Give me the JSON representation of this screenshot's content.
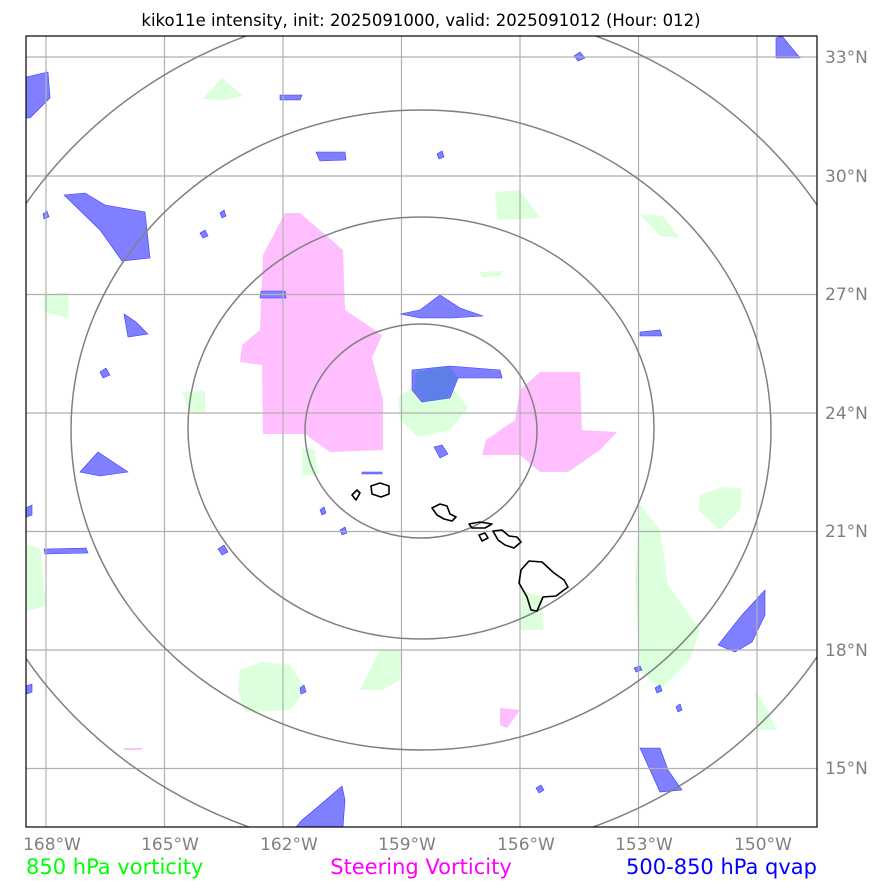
{
  "title": "kiko11e intensity, init: 2025091000, valid: 2025091012 (Hour: 012)",
  "lon_ticks": [
    "168°W",
    "165°W",
    "162°W",
    "159°W",
    "156°W",
    "153°W",
    "150°W"
  ],
  "lat_ticks": [
    "33°N",
    "30°N",
    "27°N",
    "24°N",
    "21°N",
    "18°N",
    "15°N"
  ],
  "map": {
    "lon_range": [
      -168.5,
      -148.5
    ],
    "lat_range": [
      13.5,
      33.5
    ],
    "storm_center": {
      "lon": -158.5,
      "lat": 23.6
    },
    "range_rings_count": 4,
    "grid": true
  },
  "legend": [
    {
      "label": "850 hPa vorticity",
      "color": "#00ff00"
    },
    {
      "label": "Steering Vorticity",
      "color": "#ff00ff"
    },
    {
      "label": "500-850 hPa qvap",
      "color": "#0000ff"
    }
  ],
  "colors": {
    "vorticity_850": "#dcffdc",
    "steering_vorticity": "#ffbfff",
    "qvap": "#7f7fff",
    "gridlines": "#b0b0b0",
    "rings": "#808080",
    "coastline": "#000000"
  }
}
